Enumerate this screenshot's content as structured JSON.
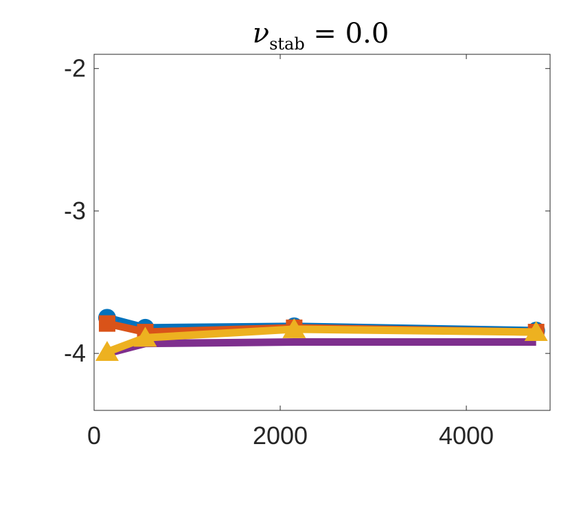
{
  "chart_data": {
    "type": "line",
    "title": {
      "symbol": "ν",
      "subscript": "stab",
      "rest": " = 0.0"
    },
    "xlabel": "",
    "ylabel": "",
    "xlim": [
      0,
      4900
    ],
    "ylim": [
      -4.4,
      -1.9
    ],
    "xticks": [
      0,
      2000,
      4000
    ],
    "xtick_labels": [
      "0",
      "2000",
      "4000"
    ],
    "yticks": [
      -4,
      -3,
      -2
    ],
    "ytick_labels": [
      "-4",
      "-3",
      "-2"
    ],
    "grid": false,
    "legend": "none",
    "x": [
      140,
      550,
      2150,
      4750
    ],
    "series": [
      {
        "color": "#0072BD",
        "marker": "circle",
        "values": [
          -3.75,
          -3.82,
          -3.81,
          -3.84
        ]
      },
      {
        "color": "#D95319",
        "marker": "square",
        "values": [
          -3.79,
          -3.85,
          -3.82,
          -3.85
        ]
      },
      {
        "color": "#7E2F8E",
        "marker": "none",
        "values": [
          -4.0,
          -3.93,
          -3.92,
          -3.92
        ]
      },
      {
        "color": "#EDB120",
        "marker": "triangle",
        "values": [
          -3.99,
          -3.89,
          -3.83,
          -3.85
        ]
      }
    ]
  }
}
